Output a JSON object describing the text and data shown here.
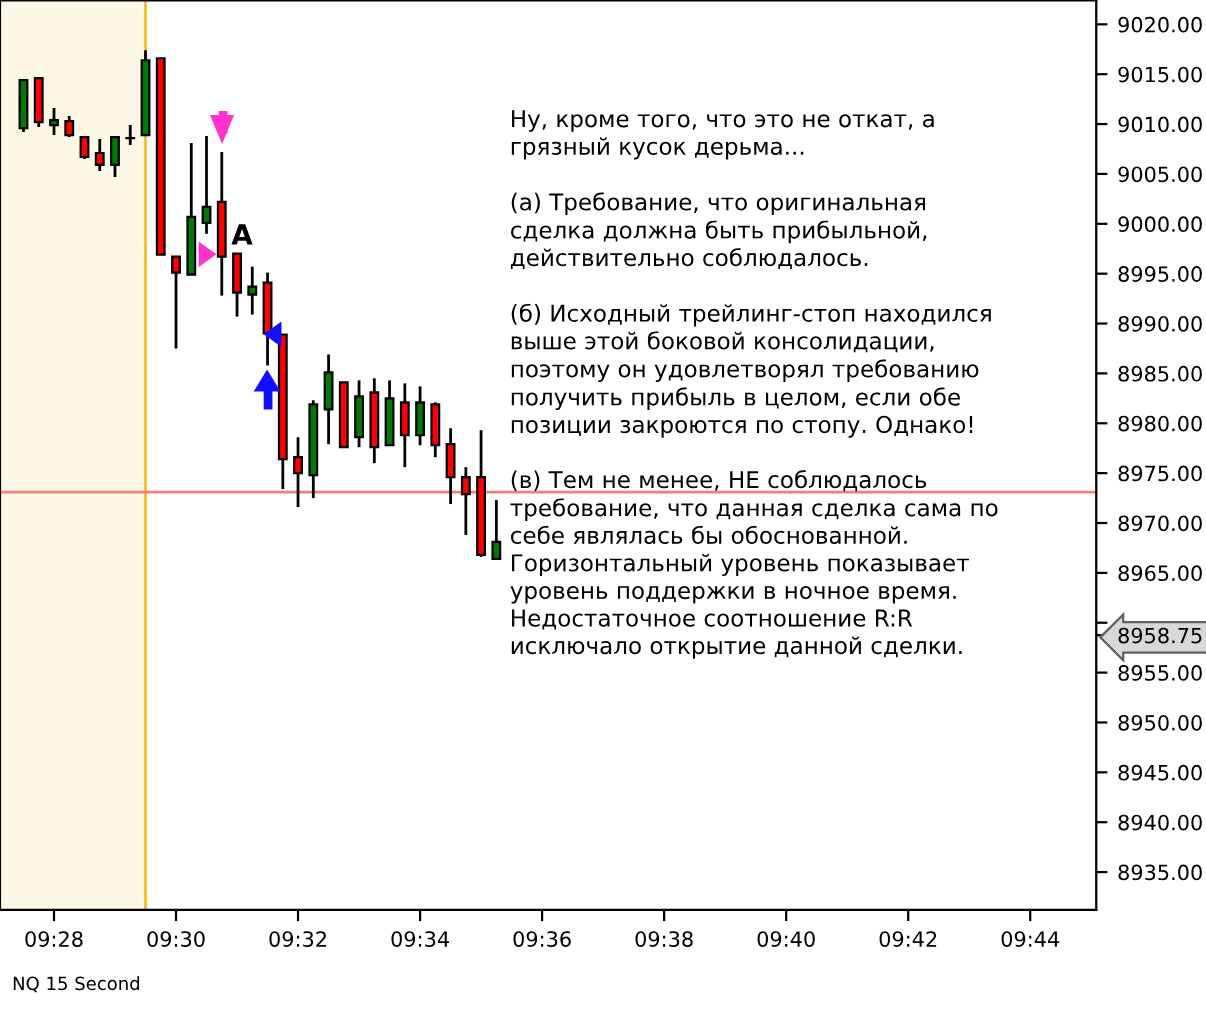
{
  "chart_data": {
    "type": "candlestick",
    "x": [
      9.45833,
      9.4625,
      9.46667,
      9.47083,
      9.475,
      9.47917,
      9.48333,
      9.4875,
      9.49167,
      9.49583,
      9.5,
      9.50417,
      9.50833,
      9.5125,
      9.51667,
      9.52083,
      9.525,
      9.52917,
      9.53333,
      9.5375,
      9.54167,
      9.54583,
      9.55,
      9.55417,
      9.55833,
      9.5625,
      9.56667,
      9.57083,
      9.575,
      9.57917,
      9.58333,
      9.5875
    ],
    "ohlc": [
      [
        9009.6,
        9014.4,
        9009.2,
        9014.4
      ],
      [
        9014.6,
        9014.6,
        9009.7,
        9010.2
      ],
      [
        9009.9,
        9011.6,
        9008.9,
        9010.4
      ],
      [
        9010.3,
        9010.8,
        9008.7,
        9008.9
      ],
      [
        9008.7,
        9008.7,
        9006.5,
        9006.7
      ],
      [
        9007.1,
        9008.5,
        9005.3,
        9005.9
      ],
      [
        9005.9,
        9008.7,
        9004.7,
        9008.7
      ],
      [
        9008.6,
        9009.9,
        9007.9,
        9008.6
      ],
      [
        9008.9,
        9017.4,
        9008.9,
        9016.4
      ],
      [
        9016.6,
        9016.6,
        8996.9,
        8996.9
      ],
      [
        8996.7,
        8996.7,
        8987.5,
        8995.1
      ],
      [
        8994.9,
        9008.1,
        8994.9,
        9000.7
      ],
      [
        9000.1,
        9008.8,
        8999.0,
        9001.7
      ],
      [
        9002.2,
        9007.2,
        8992.8,
        8996.7
      ],
      [
        8997.0,
        8997.0,
        8990.7,
        8993.1
      ],
      [
        8992.9,
        8995.7,
        8990.9,
        8993.7
      ],
      [
        8994.1,
        8995.1,
        8985.8,
        8989.0
      ],
      [
        8988.9,
        8988.9,
        8973.4,
        8976.4
      ],
      [
        8976.6,
        8978.6,
        8971.6,
        8975.0
      ],
      [
        8974.8,
        8982.3,
        8972.5,
        8981.9
      ],
      [
        8981.4,
        8986.9,
        8977.9,
        8985.1
      ],
      [
        8984.1,
        8984.1,
        8977.6,
        8977.6
      ],
      [
        8978.6,
        8984.3,
        8977.6,
        8982.7
      ],
      [
        8983.1,
        8984.5,
        8976.0,
        8977.6
      ],
      [
        8977.8,
        8984.3,
        8977.8,
        8982.5
      ],
      [
        8982.1,
        8984.0,
        8975.6,
        8978.8
      ],
      [
        8978.8,
        8983.7,
        8977.8,
        8982.1
      ],
      [
        8981.9,
        8982.1,
        8976.6,
        8977.8
      ],
      [
        8977.9,
        8979.5,
        8971.9,
        8974.6
      ],
      [
        8974.6,
        8975.6,
        8968.8,
        8972.9
      ],
      [
        8974.6,
        8979.3,
        8966.6,
        8966.8
      ],
      [
        8966.4,
        8972.3,
        8966.4,
        8968.1
      ]
    ],
    "colors": [
      "#007a00",
      "#ff0000",
      "#007a00",
      "#ff0000",
      "#ff0000",
      "#ff0000",
      "#007a00",
      "#000000",
      "#007a00",
      "#ff0000",
      "#ff0000",
      "#007a00",
      "#007a00",
      "#ff0000",
      "#ff0000",
      "#007a00",
      "#ff0000",
      "#ff0000",
      "#ff0000",
      "#007a00",
      "#007a00",
      "#ff0000",
      "#007a00",
      "#ff0000",
      "#007a00",
      "#ff0000",
      "#007a00",
      "#ff0000",
      "#ff0000",
      "#ff0000",
      "#ff0000",
      "#007a00"
    ],
    "xlim": [
      9.45192,
      9.75137
    ],
    "xticks": [
      {
        "value": 9.46667,
        "label": "09:28"
      },
      {
        "value": 9.5,
        "label": "09:30"
      },
      {
        "value": 9.53333,
        "label": "09:32"
      },
      {
        "value": 9.56667,
        "label": "09:34"
      },
      {
        "value": 9.6,
        "label": "09:36"
      },
      {
        "value": 9.63333,
        "label": "09:38"
      },
      {
        "value": 9.66667,
        "label": "09:40"
      },
      {
        "value": 9.7,
        "label": "09:42"
      },
      {
        "value": 9.73333,
        "label": "09:44"
      }
    ],
    "ylim": [
      8931.2,
      9022.4
    ],
    "yticks": [
      {
        "value": 8935,
        "label": "8935.00"
      },
      {
        "value": 8940,
        "label": "8940.00"
      },
      {
        "value": 8945,
        "label": "8945.00"
      },
      {
        "value": 8950,
        "label": "8950.00"
      },
      {
        "value": 8955,
        "label": "8955.00"
      },
      {
        "value": 8958.75,
        "label": "8958.75"
      },
      {
        "value": 8960,
        "label": null
      },
      {
        "value": 8965,
        "label": "8965.00"
      },
      {
        "value": 8970,
        "label": "8970.00"
      },
      {
        "value": 8975,
        "label": "8975.00"
      },
      {
        "value": 8980,
        "label": "8980.00"
      },
      {
        "value": 8985,
        "label": "8985.00"
      },
      {
        "value": 8990,
        "label": "8990.00"
      },
      {
        "value": 8995,
        "label": "8995.00"
      },
      {
        "value": 9000,
        "label": "9000.00"
      },
      {
        "value": 9005,
        "label": "9005.00"
      },
      {
        "value": 9010,
        "label": "9010.00"
      },
      {
        "value": 9015,
        "label": "9015.00"
      },
      {
        "value": 9020,
        "label": "9020.00"
      }
    ],
    "ref_lines": [
      {
        "axis": "y",
        "value": 8973.1,
        "color": "#f08080"
      },
      {
        "axis": "x",
        "value": 9.49167,
        "color": "#f0c020"
      }
    ],
    "bands": [
      {
        "axis": "x",
        "from": 9.45192,
        "to": 9.49167,
        "color": "#fdf8e6"
      }
    ],
    "grid": false,
    "legend": false,
    "annotations": [
      "A",
      "Ну, кроме того, что это не откат, а\nгрязный кусок дерьма...\n\n(а) Требование, что оригинальная\nсделка должна быть прибыльной,\nдействительно соблюдалось.\n\n(б) Исходный трейлинг-стоп находился\nвыше этой боковой консолидации,\nпоэтому он удовлетворял требованию\nполучить прибыль в целом, если обе\nпозиции закроются по стопу. Однако!\n\n(в) Тем не менее, НЕ соблюдалось\nтребование, что данная сделка сама по\nсебе являлась бы обоснованной.\nГоризонтальный уровень показывает\nуровень поддержки в ночное время.\nНедостаточное соотношение R:R\nисключало открытие данной сделки.",
      "NQ 15 Second"
    ]
  }
}
